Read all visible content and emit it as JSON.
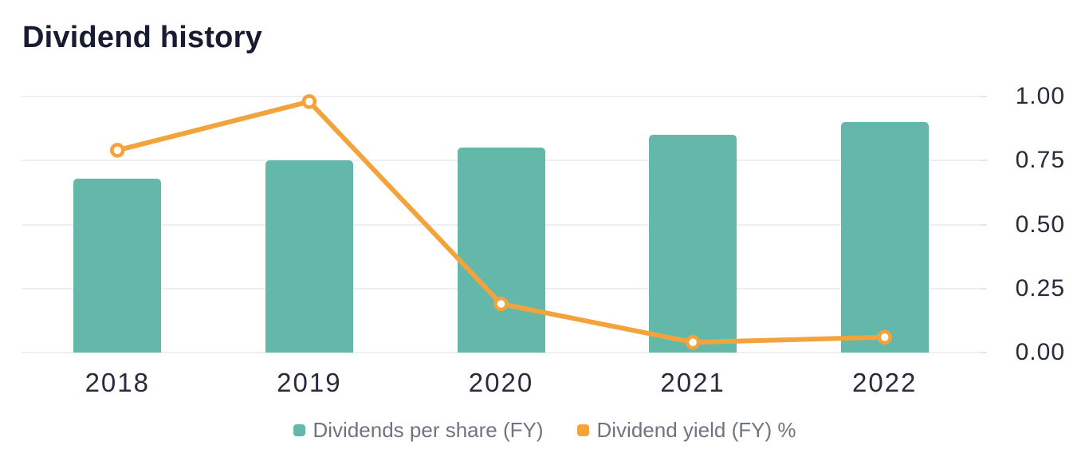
{
  "title": "Dividend history",
  "colors": {
    "background": "#FFFFFF",
    "grid": "#EDEFF5",
    "axis_text": "#272C3B",
    "legend_text": "#6E7480",
    "title_text": "#171C30",
    "bar": "#64B8A9",
    "line": "#F2A33C"
  },
  "chart_data": {
    "type": "bar+line",
    "title": "Dividend history",
    "xlabel": "",
    "ylabel": "",
    "categories": [
      "2018",
      "2019",
      "2020",
      "2021",
      "2022"
    ],
    "series": [
      {
        "name": "Dividends per share (FY)",
        "type": "bar",
        "color": "#64B8A9",
        "values": [
          0.68,
          0.75,
          0.8,
          0.85,
          0.9
        ]
      },
      {
        "name": "Dividend yield (FY) %",
        "type": "line",
        "color": "#F2A33C",
        "marker": "circle-open",
        "values": [
          0.79,
          0.98,
          0.19,
          0.04,
          0.06
        ]
      }
    ],
    "y_axis": {
      "side": "right",
      "min": 0,
      "max": 1,
      "ticks": [
        "1.00",
        "0.75",
        "0.50",
        "0.25",
        "0.00"
      ]
    },
    "grid": true,
    "legend_position": "bottom"
  }
}
